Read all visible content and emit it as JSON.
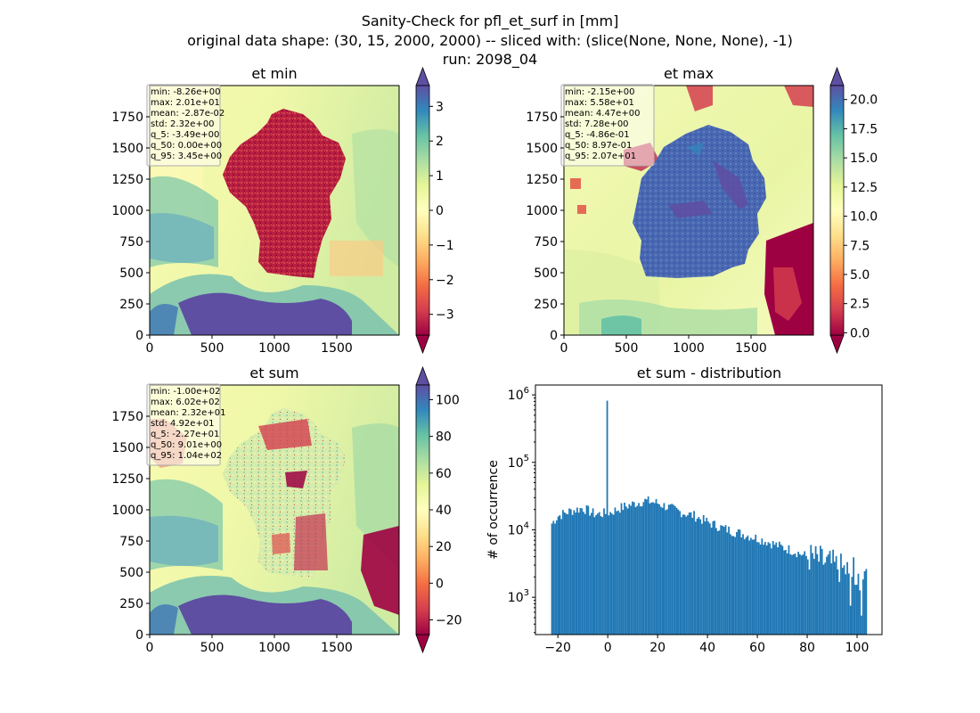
{
  "figure": {
    "suptitle_lines": [
      "Sanity-Check for pfl_et_surf in [mm]",
      "original data shape: (30, 15, 2000, 2000) -- sliced with: (slice(None, None, None), -1)",
      "run: 2098_04"
    ]
  },
  "chart_data": [
    {
      "type": "heatmap",
      "title": "et min",
      "xlim": [
        0,
        2000
      ],
      "ylim": [
        0,
        2000
      ],
      "xticks": [
        0,
        500,
        1000,
        1500
      ],
      "yticks": [
        0,
        250,
        500,
        750,
        1000,
        1250,
        1500,
        1750
      ],
      "colormap": "Spectral",
      "colorbar": {
        "range": [
          -3.6,
          3.6
        ],
        "ticks": [
          -3,
          -2,
          -1,
          0,
          1,
          2,
          3
        ],
        "extend": "both"
      },
      "stats": [
        "min: -8.26e+00",
        "max: 2.01e+01",
        "mean: -2.87e-02",
        "std: 2.32e+00",
        "q_5: -3.49e+00",
        "q_50: 0.00e+00",
        "q_95: 3.45e+00"
      ]
    },
    {
      "type": "heatmap",
      "title": "et max",
      "xlim": [
        0,
        2000
      ],
      "ylim": [
        0,
        2000
      ],
      "xticks": [
        0,
        500,
        1000,
        1500
      ],
      "yticks": [
        0,
        250,
        500,
        750,
        1000,
        1250,
        1500,
        1750
      ],
      "colormap": "Spectral",
      "colorbar": {
        "range": [
          -0.2,
          21.2
        ],
        "ticks": [
          0.0,
          2.5,
          5.0,
          7.5,
          10.0,
          12.5,
          15.0,
          17.5,
          20.0
        ],
        "extend": "both"
      },
      "stats": [
        "min: -2.15e+00",
        "max: 5.58e+01",
        "mean: 4.47e+00",
        "std: 7.28e+00",
        "q_5: -4.86e-01",
        "q_50: 8.97e-01",
        "q_95: 2.07e+01"
      ]
    },
    {
      "type": "heatmap",
      "title": "et sum",
      "xlim": [
        0,
        2000
      ],
      "ylim": [
        0,
        2000
      ],
      "xticks": [
        0,
        500,
        1000,
        1500
      ],
      "yticks": [
        0,
        250,
        500,
        750,
        1000,
        1250,
        1500,
        1750
      ],
      "colormap": "Spectral",
      "colorbar": {
        "range": [
          -28,
          108
        ],
        "ticks": [
          -20,
          0,
          20,
          40,
          60,
          80,
          100
        ],
        "extend": "both"
      },
      "stats": [
        "min: -1.00e+02",
        "max: 6.02e+02",
        "mean: 2.32e+01",
        "std: 4.92e+01",
        "q_5: -2.27e+01",
        "q_50: 9.01e+00",
        "q_95: 1.04e+02"
      ]
    },
    {
      "type": "bar",
      "title": "et sum - distribution",
      "ylabel": "# of occurrence",
      "xlim": [
        -29,
        110
      ],
      "yscale": "log",
      "ylim": [
        280,
        1400000
      ],
      "xticks": [
        -20,
        0,
        20,
        40,
        60,
        80,
        100
      ],
      "yticks": [
        1000,
        10000,
        100000,
        1000000
      ],
      "bar_color": "#1f77b4",
      "bin_range": [
        -22.7,
        104.0
      ],
      "profile": [
        {
          "x": -22.7,
          "y": 12000
        },
        {
          "x": -20,
          "y": 16000
        },
        {
          "x": -15,
          "y": 19000
        },
        {
          "x": -10,
          "y": 21000
        },
        {
          "x": -5,
          "y": 17000
        },
        {
          "x": -1,
          "y": 17500
        },
        {
          "x": 0,
          "y": 820000
        },
        {
          "x": 1,
          "y": 18000
        },
        {
          "x": 5,
          "y": 21000
        },
        {
          "x": 10,
          "y": 24000
        },
        {
          "x": 15,
          "y": 27000
        },
        {
          "x": 20,
          "y": 25000
        },
        {
          "x": 25,
          "y": 21000
        },
        {
          "x": 30,
          "y": 18000
        },
        {
          "x": 35,
          "y": 16000
        },
        {
          "x": 40,
          "y": 13000
        },
        {
          "x": 45,
          "y": 11000
        },
        {
          "x": 50,
          "y": 9500
        },
        {
          "x": 55,
          "y": 8500
        },
        {
          "x": 60,
          "y": 7500
        },
        {
          "x": 65,
          "y": 6500
        },
        {
          "x": 70,
          "y": 5500
        },
        {
          "x": 75,
          "y": 4800
        },
        {
          "x": 80,
          "y": 4000
        },
        {
          "x": 85,
          "y": 3500
        },
        {
          "x": 90,
          "y": 3000
        },
        {
          "x": 95,
          "y": 2500
        },
        {
          "x": 100,
          "y": 2200
        },
        {
          "x": 104,
          "y": 2000
        }
      ]
    }
  ]
}
